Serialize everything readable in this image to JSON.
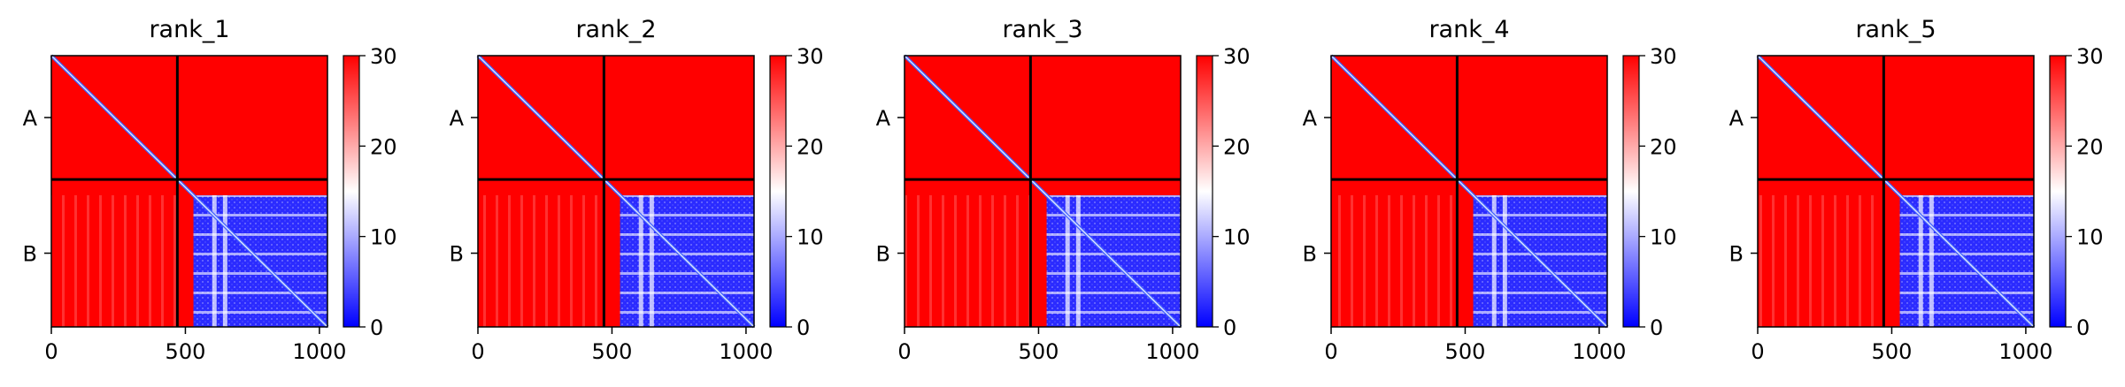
{
  "chart_data": {
    "type": "heatmap",
    "colormap": {
      "name": "bwr",
      "low": "#0000ff",
      "mid": "#ffffff",
      "high": "#ff0000"
    },
    "x_ticks": [
      0,
      500,
      1000
    ],
    "y_chain_labels": [
      "A",
      "B"
    ],
    "xlim": [
      0,
      1030
    ],
    "ylim": [
      0,
      1030
    ],
    "chain_break": 470,
    "colorbar": {
      "ticks": [
        0,
        10,
        20,
        30
      ],
      "range": [
        0,
        30
      ]
    },
    "panels": [
      {
        "title": "rank_1"
      },
      {
        "title": "rank_2"
      },
      {
        "title": "rank_3"
      },
      {
        "title": "rank_4"
      },
      {
        "title": "rank_5"
      }
    ]
  }
}
